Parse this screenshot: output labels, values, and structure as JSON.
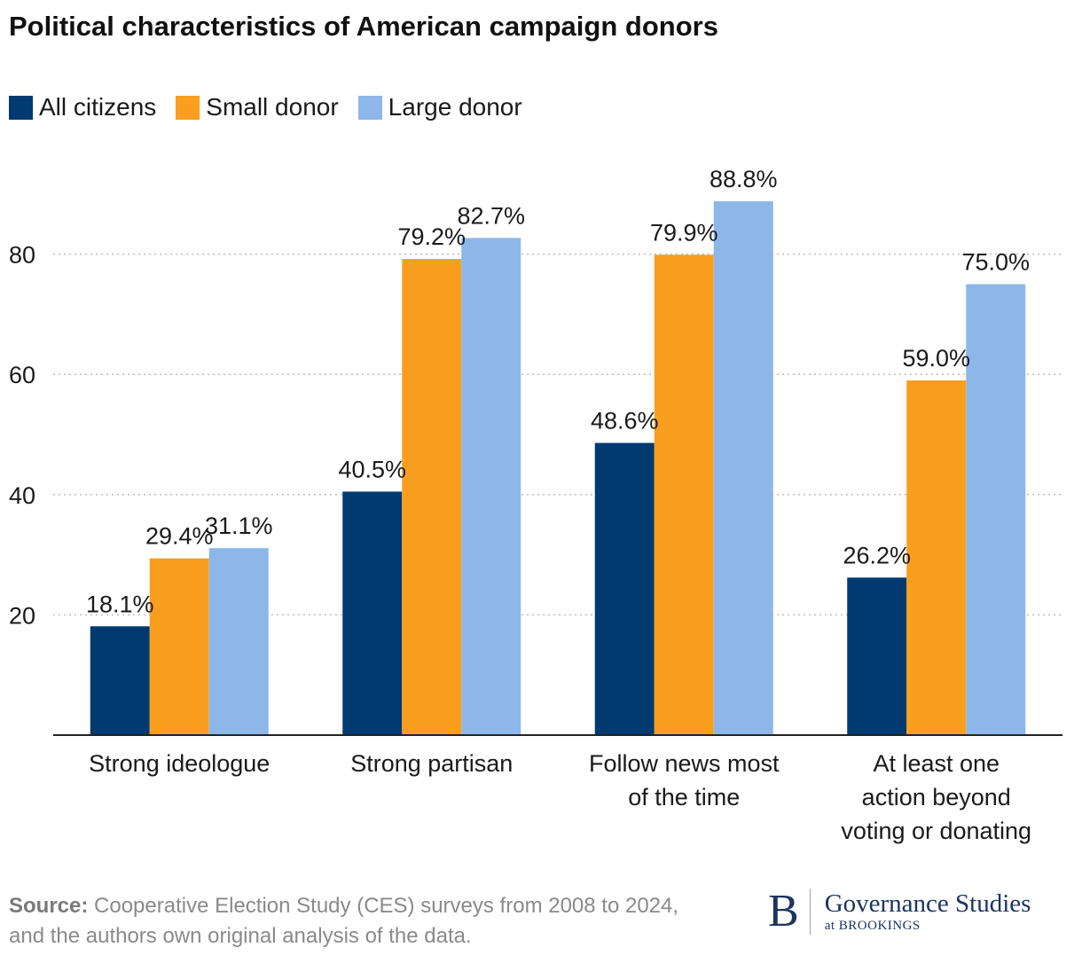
{
  "chart_data": {
    "type": "bar",
    "title": "Political characteristics of American campaign donors",
    "categories": [
      "Strong ideologue",
      "Strong partisan",
      "Follow news most of the time",
      "At least one action beyond voting or donating"
    ],
    "series": [
      {
        "name": "All citizens",
        "color": "#003a70",
        "values": [
          18.1,
          40.5,
          48.6,
          26.2
        ],
        "labels": [
          "18.1%",
          "40.5%",
          "48.6%",
          "26.2%"
        ]
      },
      {
        "name": "Small donor",
        "color": "#fa9e1f",
        "values": [
          29.4,
          79.2,
          79.9,
          59.0
        ],
        "labels": [
          "29.4%",
          "79.2%",
          "79.9%",
          "59.0%"
        ]
      },
      {
        "name": "Large donor",
        "color": "#8db7e8",
        "values": [
          31.1,
          82.7,
          88.8,
          75.0
        ],
        "labels": [
          "31.1%",
          "82.7%",
          "88.8%",
          "75.0%"
        ]
      }
    ],
    "yticks": [
      20,
      40,
      60,
      80
    ],
    "ylim": [
      0,
      100
    ],
    "grid": true,
    "legend_position": "top-left"
  },
  "source": {
    "label": "Source:",
    "text": "Cooperative Election Study (CES) surveys from 2008 to 2024, and the authors own original analysis of the data."
  },
  "logo": {
    "letter": "B",
    "main": "Governance Studies",
    "sub": "at BROOKINGS"
  }
}
